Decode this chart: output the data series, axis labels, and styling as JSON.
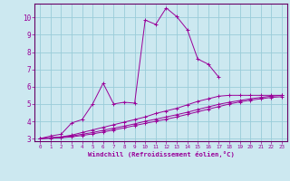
{
  "xlabel": "Windchill (Refroidissement éolien,°C)",
  "background_color": "#cce8f0",
  "grid_color": "#99ccd9",
  "line_color": "#990099",
  "spine_color": "#660066",
  "xlim": [
    -0.5,
    23.5
  ],
  "ylim": [
    2.85,
    10.8
  ],
  "yticks": [
    3,
    4,
    5,
    6,
    7,
    8,
    9,
    10
  ],
  "xticks": [
    0,
    1,
    2,
    3,
    4,
    5,
    6,
    7,
    8,
    9,
    10,
    11,
    12,
    13,
    14,
    15,
    16,
    17,
    18,
    19,
    20,
    21,
    22,
    23
  ],
  "series": [
    {
      "x": [
        0,
        1,
        2,
        3,
        4,
        5,
        6,
        7,
        8,
        9,
        10,
        11,
        12,
        13,
        14,
        15,
        16,
        17,
        18,
        19,
        20,
        21,
        22,
        23
      ],
      "y": [
        3.0,
        3.15,
        3.25,
        3.9,
        4.1,
        5.0,
        6.2,
        5.0,
        5.1,
        5.05,
        9.85,
        9.6,
        10.55,
        10.05,
        9.3,
        7.6,
        7.3,
        6.55,
        null,
        null,
        null,
        null,
        null,
        null
      ]
    },
    {
      "x": [
        0,
        1,
        2,
        3,
        4,
        5,
        6,
        7,
        8,
        9,
        10,
        11,
        12,
        13,
        14,
        15,
        16,
        17,
        18,
        19,
        20,
        21,
        22,
        23
      ],
      "y": [
        3.0,
        3.05,
        3.1,
        3.2,
        3.35,
        3.5,
        3.65,
        3.8,
        3.95,
        4.1,
        4.25,
        4.45,
        4.6,
        4.75,
        4.95,
        5.15,
        5.3,
        5.45,
        5.5,
        5.5,
        5.5,
        5.5,
        5.5,
        5.5
      ]
    },
    {
      "x": [
        0,
        1,
        2,
        3,
        4,
        5,
        6,
        7,
        8,
        9,
        10,
        11,
        12,
        13,
        14,
        15,
        16,
        17,
        18,
        19,
        20,
        21,
        22,
        23
      ],
      "y": [
        3.0,
        3.04,
        3.08,
        3.15,
        3.25,
        3.35,
        3.48,
        3.6,
        3.72,
        3.85,
        4.0,
        4.12,
        4.25,
        4.38,
        4.52,
        4.68,
        4.83,
        4.98,
        5.1,
        5.2,
        5.3,
        5.38,
        5.45,
        5.5
      ]
    },
    {
      "x": [
        0,
        1,
        2,
        3,
        4,
        5,
        6,
        7,
        8,
        9,
        10,
        11,
        12,
        13,
        14,
        15,
        16,
        17,
        18,
        19,
        20,
        21,
        22,
        23
      ],
      "y": [
        3.0,
        3.02,
        3.05,
        3.1,
        3.18,
        3.27,
        3.38,
        3.5,
        3.62,
        3.75,
        3.88,
        4.0,
        4.12,
        4.25,
        4.4,
        4.55,
        4.7,
        4.85,
        5.0,
        5.12,
        5.22,
        5.3,
        5.38,
        5.42
      ]
    }
  ]
}
